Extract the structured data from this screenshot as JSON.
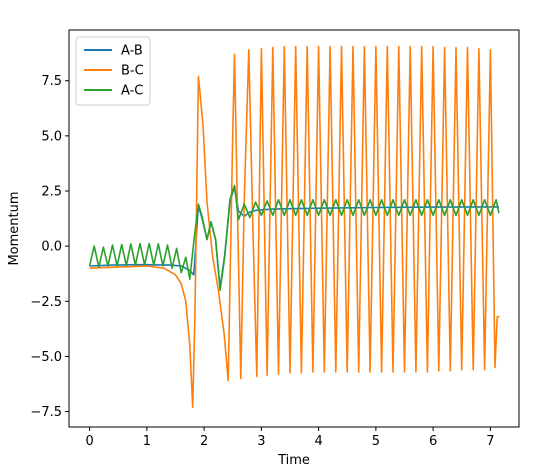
{
  "chart_data": {
    "type": "line",
    "title": "",
    "xlabel": "Time",
    "ylabel": "Momentum",
    "xlim": [
      -0.36,
      7.5
    ],
    "ylim": [
      -8.2,
      9.8
    ],
    "xticks": [
      0,
      1,
      2,
      3,
      4,
      5,
      6,
      7
    ],
    "xtick_labels": [
      "0",
      "1",
      "2",
      "3",
      "4",
      "5",
      "6",
      "7"
    ],
    "yticks": [
      -7.5,
      -5.0,
      -2.5,
      0.0,
      2.5,
      5.0,
      7.5
    ],
    "ytick_labels": [
      "−7.5",
      "−5.0",
      "−2.5",
      "0.0",
      "2.5",
      "5.0",
      "7.5"
    ],
    "grid": false,
    "legend": {
      "position": "top-left",
      "entries": [
        "A-B",
        "B-C",
        "A-C"
      ]
    },
    "series": [
      {
        "name": "A-B",
        "color": "#1f77b4",
        "x": [
          0,
          0.2,
          0.4,
          0.6,
          0.8,
          1.0,
          1.2,
          1.4,
          1.6,
          1.75,
          1.82,
          1.9,
          1.96,
          2.05,
          2.12,
          2.2,
          2.28,
          2.36,
          2.45,
          2.53,
          2.6,
          2.7,
          2.8,
          2.9,
          3.0,
          3.2,
          3.5,
          4.0,
          5.0,
          6.0,
          7.0,
          7.15
        ],
        "values": [
          -0.9,
          -0.88,
          -0.86,
          -0.85,
          -0.84,
          -0.84,
          -0.85,
          -0.86,
          -0.9,
          -1.1,
          -1.3,
          1.85,
          1.3,
          0.3,
          1.1,
          0.3,
          -1.9,
          -0.4,
          2.0,
          2.7,
          1.6,
          1.35,
          1.55,
          1.62,
          1.65,
          1.68,
          1.7,
          1.72,
          1.75,
          1.77,
          1.78,
          1.78
        ]
      },
      {
        "name": "B-C",
        "color": "#ff7f0e",
        "x": [
          0,
          0.5,
          1.0,
          1.3,
          1.5,
          1.6,
          1.68,
          1.75,
          1.8,
          1.84,
          1.9,
          1.98,
          2.05,
          2.15,
          2.25,
          2.35,
          2.42,
          2.5,
          2.53,
          2.58,
          2.64,
          2.7,
          2.78,
          2.85,
          2.92,
          3.0,
          3.1,
          3.2,
          3.3,
          3.4,
          3.5,
          3.6,
          3.7,
          3.8,
          3.9,
          4.0,
          4.1,
          4.2,
          4.3,
          4.4,
          4.5,
          4.6,
          4.7,
          4.8,
          4.9,
          5.0,
          5.1,
          5.2,
          5.3,
          5.4,
          5.5,
          5.6,
          5.7,
          5.8,
          5.9,
          6.0,
          6.1,
          6.2,
          6.3,
          6.4,
          6.5,
          6.6,
          6.7,
          6.8,
          6.9,
          7.0,
          7.08,
          7.12,
          7.16
        ],
        "values": [
          -1.0,
          -0.95,
          -0.9,
          -1.0,
          -1.3,
          -1.7,
          -2.5,
          -4.5,
          -7.3,
          -3.0,
          7.7,
          5.5,
          2.0,
          -0.5,
          -2.0,
          -4.0,
          -6.1,
          5.0,
          8.7,
          2.0,
          -6.0,
          2.0,
          8.9,
          1.0,
          -5.9,
          8.95,
          -5.85,
          9.0,
          -5.8,
          9.05,
          -5.75,
          9.05,
          -5.75,
          9.05,
          -5.7,
          9.05,
          -5.7,
          9.05,
          -5.7,
          9.05,
          -5.7,
          9.05,
          -5.7,
          9.05,
          -5.7,
          9.05,
          -5.7,
          9.05,
          -5.7,
          9.05,
          -5.7,
          9.05,
          -5.7,
          9.05,
          -5.7,
          9.05,
          -5.65,
          9.0,
          -5.65,
          9.0,
          -5.6,
          9.0,
          -5.6,
          8.95,
          -5.6,
          8.9,
          -5.5,
          -3.2,
          -3.2
        ]
      },
      {
        "name": "A-C",
        "color": "#2ca02c",
        "x": [
          0,
          0.08,
          0.16,
          0.24,
          0.32,
          0.4,
          0.48,
          0.56,
          0.64,
          0.72,
          0.8,
          0.88,
          0.96,
          1.04,
          1.12,
          1.2,
          1.28,
          1.36,
          1.44,
          1.52,
          1.6,
          1.68,
          1.75,
          1.82,
          1.9,
          1.96,
          2.05,
          2.12,
          2.2,
          2.28,
          2.36,
          2.45,
          2.53,
          2.6,
          2.7,
          2.8,
          2.9,
          3.0,
          3.1,
          3.2,
          3.3,
          3.4,
          3.5,
          3.6,
          3.7,
          3.8,
          3.9,
          4.0,
          4.1,
          4.2,
          4.3,
          4.4,
          4.5,
          4.6,
          4.7,
          4.8,
          4.9,
          5.0,
          5.1,
          5.2,
          5.3,
          5.4,
          5.5,
          5.6,
          5.7,
          5.8,
          5.9,
          6.0,
          6.1,
          6.2,
          6.3,
          6.4,
          6.5,
          6.6,
          6.7,
          6.8,
          6.9,
          7.0,
          7.1,
          7.15
        ],
        "values": [
          -0.9,
          0.0,
          -0.95,
          -0.05,
          -0.9,
          0.05,
          -0.9,
          0.08,
          -0.88,
          0.1,
          -0.86,
          0.12,
          -0.85,
          0.12,
          -0.86,
          0.1,
          -0.9,
          0.05,
          -1.0,
          -0.1,
          -1.2,
          -0.5,
          -1.5,
          0.2,
          1.9,
          1.4,
          0.3,
          1.1,
          0.3,
          -2.0,
          -0.5,
          2.1,
          2.75,
          1.2,
          1.9,
          1.3,
          2.0,
          1.4,
          2.05,
          1.4,
          2.1,
          1.4,
          2.1,
          1.4,
          2.1,
          1.4,
          2.1,
          1.4,
          2.1,
          1.4,
          2.1,
          1.4,
          2.1,
          1.4,
          2.1,
          1.4,
          2.1,
          1.4,
          2.1,
          1.4,
          2.1,
          1.4,
          2.1,
          1.4,
          2.1,
          1.4,
          2.1,
          1.4,
          2.1,
          1.4,
          2.1,
          1.4,
          2.1,
          1.4,
          2.1,
          1.4,
          2.1,
          1.4,
          2.1,
          1.5
        ]
      }
    ]
  }
}
